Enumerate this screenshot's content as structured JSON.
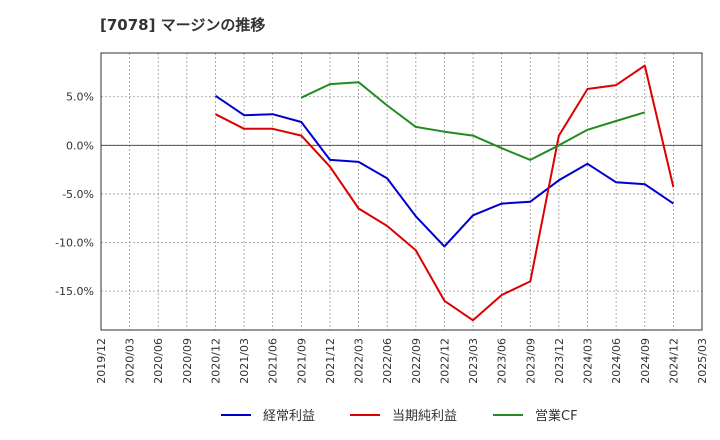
{
  "chart_data": {
    "type": "line",
    "title": "[7078]  マージンの推移",
    "xlabel": "",
    "ylabel": "",
    "x": [
      "2019/12",
      "2020/03",
      "2020/06",
      "2020/09",
      "2020/12",
      "2021/03",
      "2021/06",
      "2021/09",
      "2021/12",
      "2022/03",
      "2022/06",
      "2022/09",
      "2022/12",
      "2023/03",
      "2023/06",
      "2023/09",
      "2023/12",
      "2024/03",
      "2024/06",
      "2024/09",
      "2024/12",
      "2025/03"
    ],
    "ylim": [
      -19,
      9.5
    ],
    "yticks": [
      5,
      0,
      -5,
      -10,
      -15
    ],
    "ytick_labels": [
      "5.0%",
      "0.0%",
      "-5.0%",
      "-10.0%",
      "-15.0%"
    ],
    "grid": true,
    "legend_position": "bottom",
    "series": [
      {
        "name": "経常利益",
        "color": "#0000cc",
        "points": [
          [
            "2020/12",
            5.1
          ],
          [
            "2021/03",
            3.1
          ],
          [
            "2021/06",
            3.2
          ],
          [
            "2021/09",
            2.4
          ],
          [
            "2021/12",
            -1.5
          ],
          [
            "2022/03",
            -1.7
          ],
          [
            "2022/06",
            -3.4
          ],
          [
            "2022/09",
            -7.3
          ],
          [
            "2022/12",
            -10.4
          ],
          [
            "2023/03",
            -7.2
          ],
          [
            "2023/06",
            -6.0
          ],
          [
            "2023/09",
            -5.8
          ],
          [
            "2023/12",
            -3.6
          ],
          [
            "2024/03",
            -1.9
          ],
          [
            "2024/06",
            -3.8
          ],
          [
            "2024/09",
            -4.0
          ],
          [
            "2024/12",
            -6.0
          ]
        ]
      },
      {
        "name": "当期純利益",
        "color": "#dd0000",
        "points": [
          [
            "2020/12",
            3.2
          ],
          [
            "2021/03",
            1.7
          ],
          [
            "2021/06",
            1.7
          ],
          [
            "2021/09",
            1.0
          ],
          [
            "2021/12",
            -2.2
          ],
          [
            "2022/03",
            -6.5
          ],
          [
            "2022/06",
            -8.3
          ],
          [
            "2022/09",
            -10.8
          ],
          [
            "2022/12",
            -16.0
          ],
          [
            "2023/03",
            -18.0
          ],
          [
            "2023/06",
            -15.4
          ],
          [
            "2023/09",
            -14.0
          ],
          [
            "2023/12",
            1.0
          ],
          [
            "2024/03",
            5.8
          ],
          [
            "2024/06",
            6.2
          ],
          [
            "2024/09",
            8.2
          ],
          [
            "2024/12",
            -4.3
          ]
        ]
      },
      {
        "name": "営業CF",
        "color": "#228b22",
        "points": [
          [
            "2021/09",
            4.9
          ],
          [
            "2021/12",
            6.3
          ],
          [
            "2022/03",
            6.5
          ],
          [
            "2022/06",
            4.1
          ],
          [
            "2022/09",
            1.9
          ],
          [
            "2022/12",
            1.4
          ],
          [
            "2023/03",
            1.0
          ],
          [
            "2023/06",
            -0.3
          ],
          [
            "2023/09",
            -1.5
          ],
          [
            "2023/12",
            0.0
          ],
          [
            "2024/03",
            1.6
          ],
          [
            "2024/06",
            2.5
          ],
          [
            "2024/09",
            3.4
          ]
        ]
      }
    ]
  }
}
